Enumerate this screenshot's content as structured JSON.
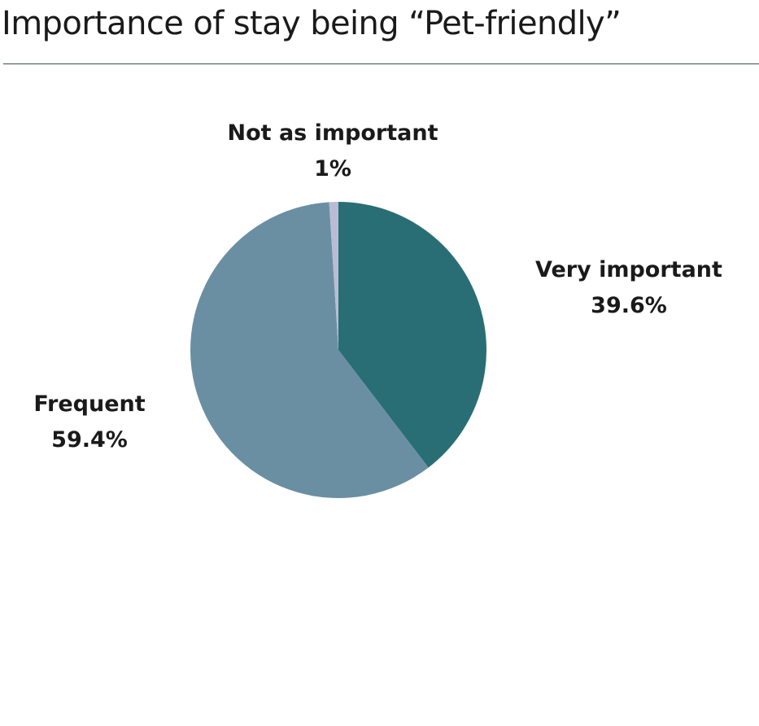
{
  "title": "Importance of stay being “Pet-friendly”",
  "colors": {
    "very_important": "#2a6e75",
    "frequent": "#6a8fa3",
    "not_as_important": "#b9bcd4",
    "title_rule": "#3d4b4b"
  },
  "chart_data": {
    "type": "pie",
    "title": "Importance of stay being “Pet-friendly”",
    "start_angle": "12 o'clock, clockwise",
    "slices": [
      {
        "label": "Very important",
        "value": 39.6,
        "value_label": "39.6%",
        "color": "#2a6e75"
      },
      {
        "label": "Frequent",
        "value": 59.4,
        "value_label": "59.4%",
        "color": "#6a8fa3"
      },
      {
        "label": "Not as important",
        "value": 1,
        "value_label": "1%",
        "color": "#b9bcd4"
      }
    ],
    "legend": "none"
  }
}
